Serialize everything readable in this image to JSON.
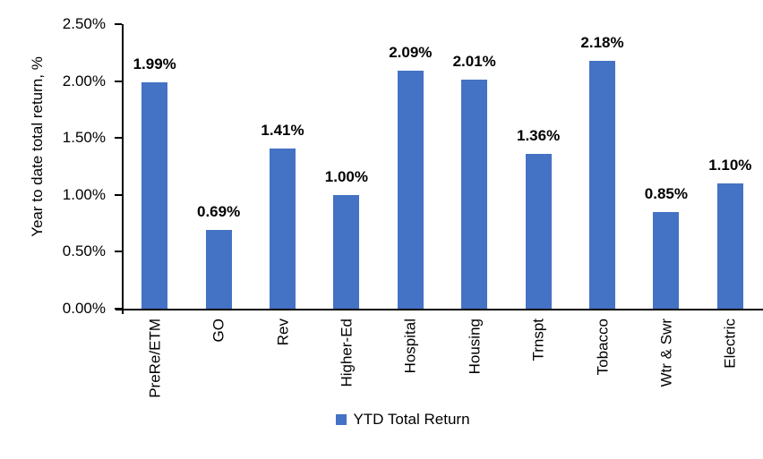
{
  "chart_data": {
    "type": "bar",
    "title": "",
    "ylabel": "Year to date total return, %",
    "xlabel": "",
    "categories": [
      "PreRe/ETM",
      "GO",
      "Rev",
      "Higher-Ed",
      "Hospital",
      "Housing",
      "Trnspt",
      "Tobacco",
      "Wtr & Swr",
      "Electric"
    ],
    "values": [
      1.99,
      0.69,
      1.41,
      1.0,
      2.09,
      2.01,
      1.36,
      2.18,
      0.85,
      1.1
    ],
    "value_labels": [
      "1.99%",
      "0.69%",
      "1.41%",
      "1.00%",
      "2.09%",
      "2.01%",
      "1.36%",
      "2.18%",
      "0.85%",
      "1.10%"
    ],
    "y_ticks": [
      "0.00%",
      "0.50%",
      "1.00%",
      "1.50%",
      "2.00%",
      "2.50%"
    ],
    "ylim": [
      0,
      2.5
    ],
    "legend_label": "YTD Total Return",
    "legend_position": "bottom",
    "bar_color": "#4472C4",
    "axis_color": "#000000",
    "grid": false
  }
}
